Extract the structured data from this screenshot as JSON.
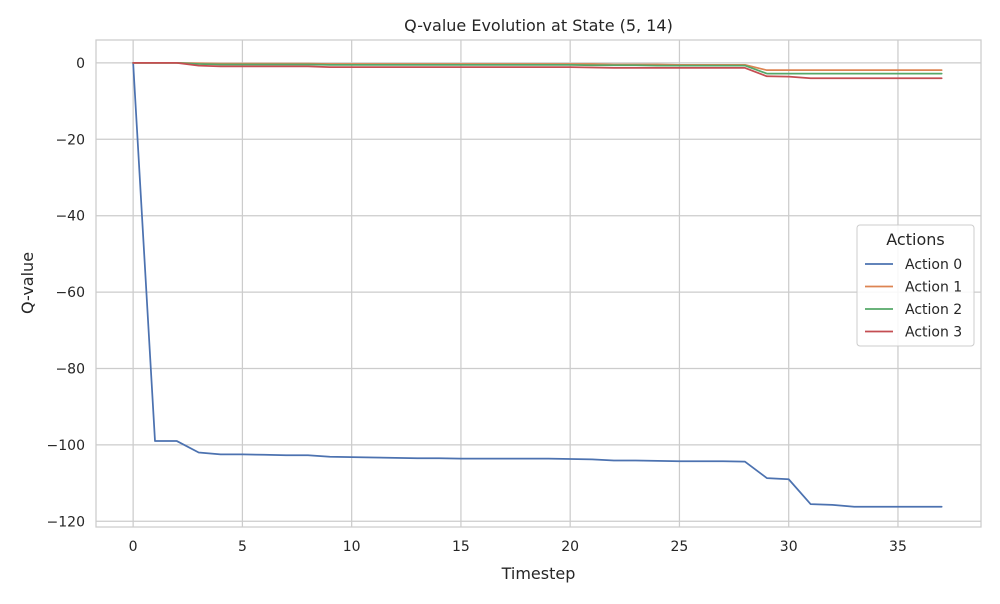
{
  "chart_data": {
    "type": "line",
    "title": "Q-value Evolution at State (5, 14)",
    "xlabel": "Timestep",
    "ylabel": "Q-value",
    "xlim": [
      -1.7,
      38.8
    ],
    "ylim": [
      -121.5,
      6
    ],
    "xticks": [
      0,
      5,
      10,
      15,
      20,
      25,
      30,
      35
    ],
    "yticks": [
      0,
      -20,
      -40,
      -60,
      -80,
      -100,
      -120
    ],
    "xtick_labels": [
      "0",
      "5",
      "10",
      "15",
      "20",
      "25",
      "30",
      "35"
    ],
    "ytick_labels": [
      "0",
      "−20",
      "−40",
      "−60",
      "−80",
      "−100",
      "−120"
    ],
    "grid": true,
    "legend": {
      "title": "Actions",
      "position": "center-right"
    },
    "x": [
      0,
      1,
      2,
      3,
      4,
      5,
      6,
      7,
      8,
      9,
      10,
      11,
      12,
      13,
      14,
      15,
      16,
      17,
      18,
      19,
      20,
      21,
      22,
      23,
      24,
      25,
      26,
      27,
      28,
      29,
      30,
      31,
      32,
      33,
      34,
      35,
      36,
      37
    ],
    "series": [
      {
        "name": "Action 0",
        "color": "#4c72b0",
        "values": [
          0,
          -99,
          -99,
          -102,
          -102.5,
          -102.5,
          -102.6,
          -102.7,
          -102.7,
          -103.1,
          -103.2,
          -103.3,
          -103.4,
          -103.5,
          -103.5,
          -103.6,
          -103.6,
          -103.6,
          -103.6,
          -103.6,
          -103.7,
          -103.8,
          -104.1,
          -104.1,
          -104.2,
          -104.3,
          -104.3,
          -104.3,
          -104.4,
          -108.7,
          -109,
          -115.5,
          -115.7,
          -116.2,
          -116.2,
          -116.2,
          -116.2,
          -116.2
        ]
      },
      {
        "name": "Action 1",
        "color": "#dd8452",
        "values": [
          0,
          0,
          0,
          -0.1,
          -0.2,
          -0.2,
          -0.2,
          -0.2,
          -0.2,
          -0.3,
          -0.3,
          -0.3,
          -0.3,
          -0.3,
          -0.3,
          -0.3,
          -0.3,
          -0.3,
          -0.3,
          -0.3,
          -0.3,
          -0.3,
          -0.4,
          -0.4,
          -0.4,
          -0.5,
          -0.5,
          -0.5,
          -0.5,
          -1.9,
          -1.9,
          -1.9,
          -1.9,
          -1.9,
          -1.9,
          -1.9,
          -1.9,
          -1.9
        ]
      },
      {
        "name": "Action 2",
        "color": "#55a868",
        "values": [
          0,
          0,
          0,
          -0.3,
          -0.4,
          -0.4,
          -0.4,
          -0.4,
          -0.4,
          -0.5,
          -0.5,
          -0.5,
          -0.5,
          -0.5,
          -0.5,
          -0.5,
          -0.5,
          -0.5,
          -0.5,
          -0.5,
          -0.5,
          -0.6,
          -0.6,
          -0.6,
          -0.7,
          -0.7,
          -0.7,
          -0.7,
          -0.7,
          -2.8,
          -2.8,
          -2.8,
          -2.8,
          -2.8,
          -2.8,
          -2.8,
          -2.8,
          -2.8
        ]
      },
      {
        "name": "Action 3",
        "color": "#c44e52",
        "values": [
          0,
          0,
          0,
          -0.7,
          -0.9,
          -0.9,
          -0.9,
          -0.9,
          -0.9,
          -1.1,
          -1.1,
          -1.1,
          -1.1,
          -1.1,
          -1.1,
          -1.1,
          -1.1,
          -1.1,
          -1.1,
          -1.1,
          -1.1,
          -1.2,
          -1.3,
          -1.3,
          -1.3,
          -1.3,
          -1.3,
          -1.3,
          -1.3,
          -3.5,
          -3.6,
          -4,
          -4,
          -4,
          -4,
          -4,
          -4,
          -4
        ]
      }
    ]
  }
}
